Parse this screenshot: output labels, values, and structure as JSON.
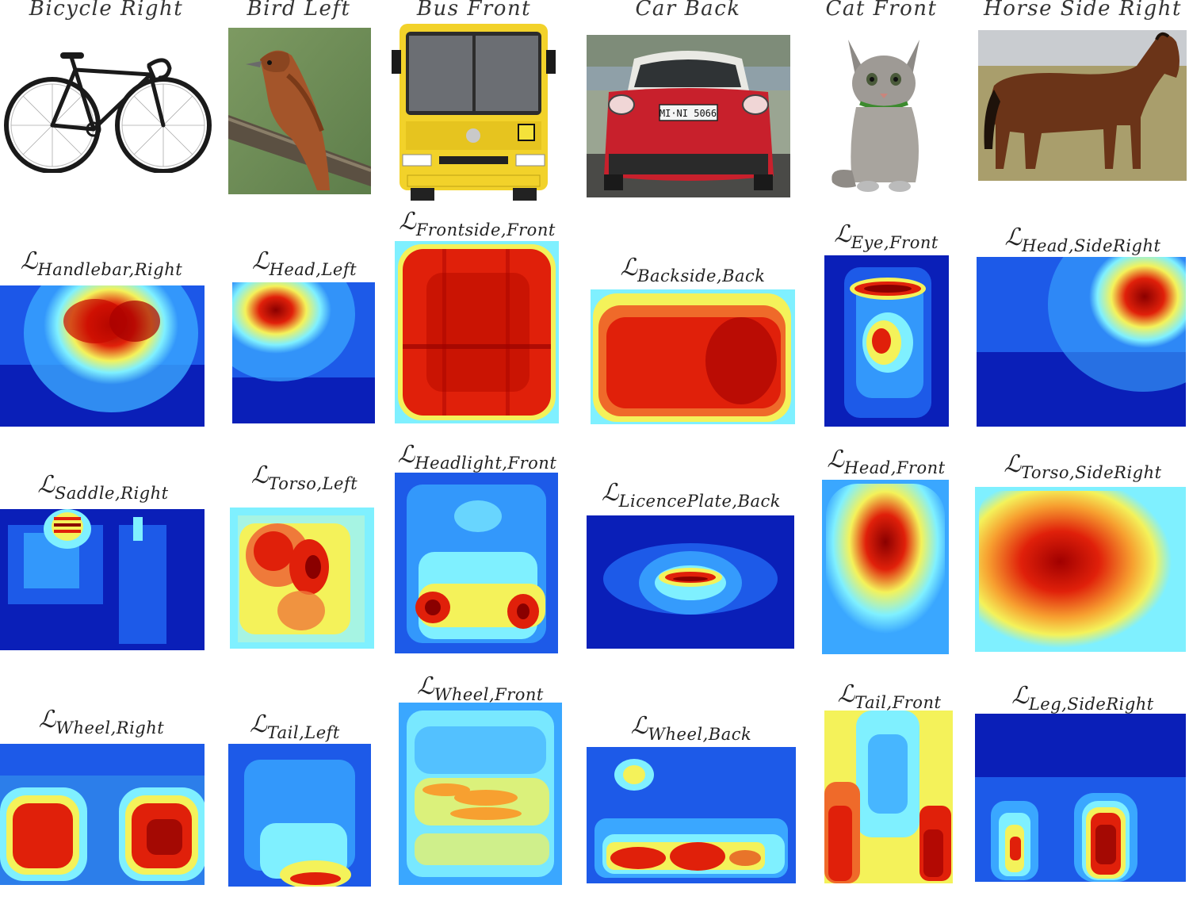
{
  "columns": [
    {
      "title": "Bicycle Right"
    },
    {
      "title": "Bird Left"
    },
    {
      "title": "Bus Front"
    },
    {
      "title": "Car Back"
    },
    {
      "title": "Cat Front"
    },
    {
      "title": "Horse Side Right"
    }
  ],
  "loss_symbol": "ℒ",
  "rows": [
    [
      "Handlebar,Right",
      "Head,Left",
      "Frontside,Front",
      "Backside,Back",
      "Eye,Front",
      "Head,SideRight"
    ],
    [
      "Saddle,Right",
      "Torso,Left",
      "Headlight,Front",
      "LicencePlate,Back",
      "Head,Front",
      "Torso,SideRight"
    ],
    [
      "Wheel,Right",
      "Tail,Left",
      "Wheel,Front",
      "Wheel,Back",
      "Tail,Front",
      "Leg,SideRight"
    ]
  ],
  "photos": {
    "bicycle": "bicycle-photo",
    "bird": "bird-photo",
    "bus": "bus-photo",
    "car": "car-photo",
    "cat": "cat-photo",
    "horse": "horse-photo",
    "plate_text": "MI·NI 5066"
  },
  "colors": {
    "heat_low": "#0a1fb8",
    "heat_mid": "#7ff0ff",
    "heat_yellow": "#f4f25a",
    "heat_high": "#e0200a",
    "heat_peak": "#8a0000"
  }
}
